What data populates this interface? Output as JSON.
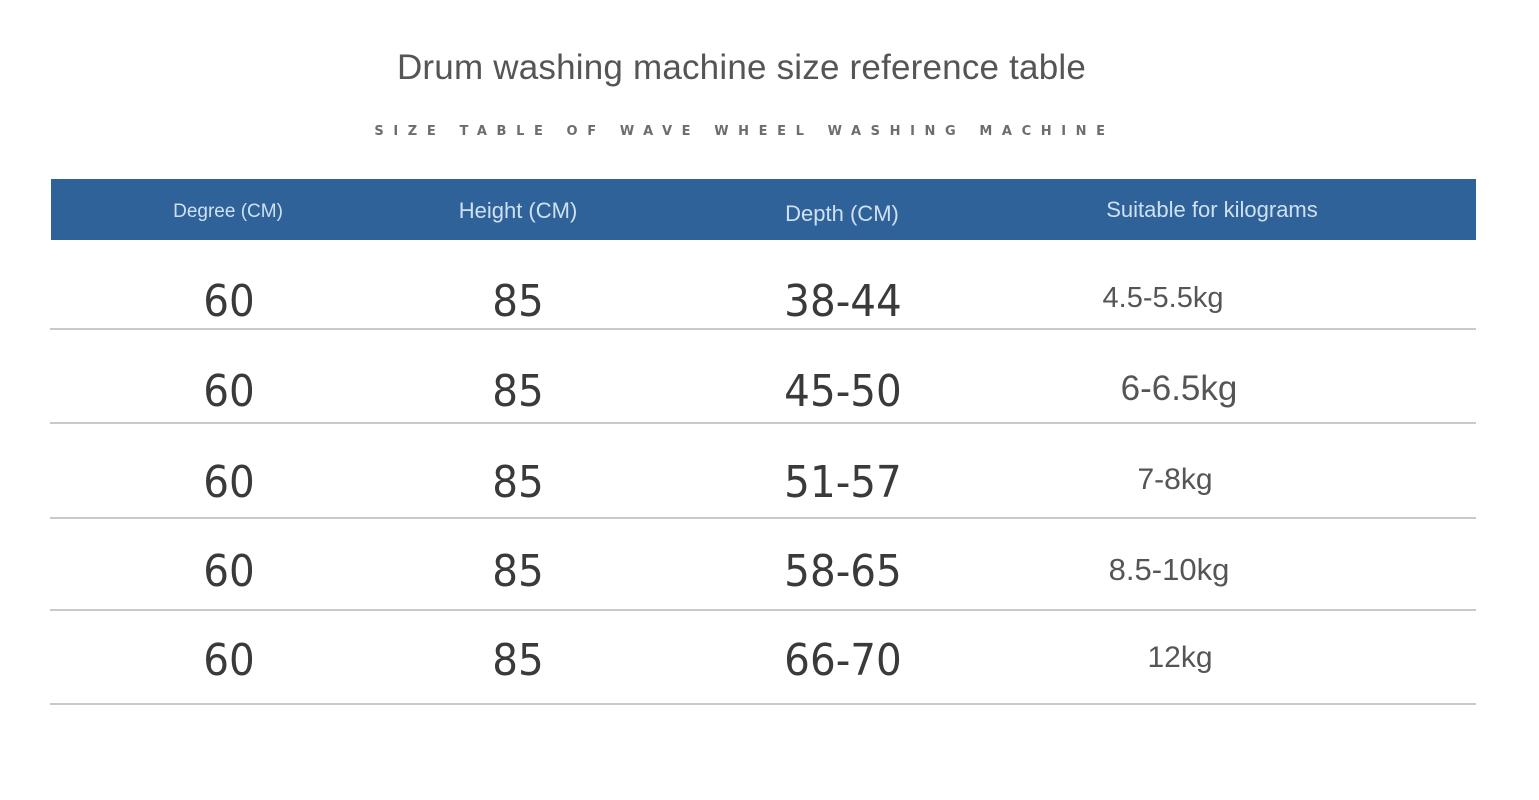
{
  "title": "Drum washing machine size reference table",
  "subtitle": "SIZE TABLE OF WAVE WHEEL WASHING MACHINE",
  "colors": {
    "header_background": "#2e6299",
    "header_text": "#cfe0f2",
    "cell_text": "#3a3a3a",
    "divider": "#c9c9c9"
  },
  "table": {
    "columns": [
      "Degree (CM)",
      "Height (CM)",
      "Depth (CM)",
      "Suitable for kilograms"
    ],
    "rows": [
      {
        "width": "60",
        "height": "85",
        "depth": "38-44",
        "capacity": "4.5-5.5kg"
      },
      {
        "width": "60",
        "height": "85",
        "depth": "45-50",
        "capacity": "6-6.5kg"
      },
      {
        "width": "60",
        "height": "85",
        "depth": "51-57",
        "capacity": "7-8kg"
      },
      {
        "width": "60",
        "height": "85",
        "depth": "58-65",
        "capacity": "8.5-10kg"
      },
      {
        "width": "60",
        "height": "85",
        "depth": "66-70",
        "capacity": "12kg"
      }
    ]
  }
}
